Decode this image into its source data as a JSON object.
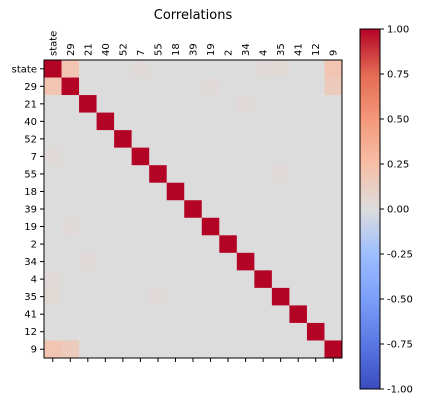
{
  "chart_data": {
    "type": "heatmap",
    "title": "Correlations",
    "labels": [
      "state",
      "29",
      "21",
      "40",
      "52",
      "7",
      "55",
      "18",
      "39",
      "19",
      "2",
      "34",
      "4",
      "35",
      "41",
      "12",
      "9"
    ],
    "vmin": -1.0,
    "vmax": 1.0,
    "colormap": "coolwarm",
    "colorbar_ticks": [
      "-1.00",
      "-0.75",
      "-0.50",
      "-0.25",
      "0.00",
      "0.25",
      "0.50",
      "0.75",
      "1.00"
    ],
    "matrix": [
      [
        1.0,
        0.2,
        0.0,
        0.0,
        0.0,
        0.02,
        0.0,
        0.0,
        0.0,
        0.0,
        0.0,
        0.0,
        0.02,
        0.03,
        0.0,
        0.0,
        0.2
      ],
      [
        0.2,
        1.0,
        0.0,
        0.0,
        0.0,
        0.0,
        0.0,
        0.0,
        0.0,
        0.02,
        0.0,
        0.0,
        0.0,
        0.0,
        0.0,
        0.0,
        0.15
      ],
      [
        0.0,
        0.0,
        1.0,
        0.0,
        0.0,
        0.0,
        0.0,
        0.0,
        0.0,
        0.0,
        0.0,
        0.02,
        0.0,
        0.0,
        0.0,
        0.0,
        0.0
      ],
      [
        0.0,
        0.0,
        0.0,
        1.0,
        0.0,
        0.0,
        0.0,
        0.0,
        0.0,
        0.0,
        0.0,
        0.0,
        0.0,
        0.0,
        0.0,
        0.0,
        0.0
      ],
      [
        0.0,
        0.0,
        0.0,
        0.0,
        1.0,
        0.0,
        0.0,
        0.0,
        0.0,
        0.0,
        0.0,
        0.0,
        0.0,
        0.0,
        0.0,
        0.0,
        0.0
      ],
      [
        0.02,
        0.0,
        0.0,
        0.0,
        0.0,
        1.0,
        0.0,
        0.0,
        0.0,
        0.0,
        0.0,
        0.0,
        0.0,
        0.0,
        0.0,
        0.0,
        0.0
      ],
      [
        0.0,
        0.0,
        0.0,
        0.0,
        0.0,
        0.0,
        1.0,
        0.0,
        0.0,
        0.0,
        0.0,
        0.0,
        0.0,
        0.02,
        0.0,
        0.0,
        0.0
      ],
      [
        0.0,
        0.0,
        0.0,
        0.0,
        0.0,
        0.0,
        0.0,
        1.0,
        0.0,
        0.0,
        0.0,
        0.0,
        0.0,
        0.0,
        0.0,
        0.0,
        0.0
      ],
      [
        0.0,
        0.0,
        0.0,
        0.0,
        0.0,
        0.0,
        0.0,
        0.0,
        1.0,
        0.0,
        0.0,
        0.0,
        0.0,
        0.0,
        0.0,
        0.0,
        0.0
      ],
      [
        0.0,
        0.02,
        0.0,
        0.0,
        0.0,
        0.0,
        0.0,
        0.0,
        0.0,
        1.0,
        0.0,
        0.0,
        0.0,
        0.0,
        0.0,
        0.0,
        0.0
      ],
      [
        0.0,
        0.0,
        0.0,
        0.0,
        0.0,
        0.0,
        0.0,
        0.0,
        0.0,
        0.0,
        1.0,
        0.0,
        0.0,
        0.0,
        0.0,
        0.0,
        0.0
      ],
      [
        0.0,
        0.0,
        0.02,
        0.0,
        0.0,
        0.0,
        0.0,
        0.0,
        0.0,
        0.0,
        0.0,
        1.0,
        0.0,
        0.0,
        0.0,
        0.0,
        0.0
      ],
      [
        0.02,
        0.0,
        0.0,
        0.0,
        0.0,
        0.0,
        0.0,
        0.0,
        0.0,
        0.0,
        0.0,
        0.0,
        1.0,
        0.0,
        0.0,
        0.0,
        0.0
      ],
      [
        0.03,
        0.0,
        0.0,
        0.0,
        0.0,
        0.0,
        0.02,
        0.0,
        0.0,
        0.0,
        0.0,
        0.0,
        0.0,
        1.0,
        0.0,
        0.0,
        0.0
      ],
      [
        0.0,
        0.0,
        0.0,
        0.0,
        0.0,
        0.0,
        0.0,
        0.0,
        0.0,
        0.0,
        0.0,
        0.0,
        0.0,
        0.0,
        1.0,
        0.0,
        0.0
      ],
      [
        0.0,
        0.0,
        0.0,
        0.0,
        0.0,
        0.0,
        0.0,
        0.0,
        0.0,
        0.0,
        0.0,
        0.0,
        0.0,
        0.0,
        0.0,
        1.0,
        0.0
      ],
      [
        0.2,
        0.15,
        0.0,
        0.0,
        0.0,
        0.0,
        0.0,
        0.0,
        0.0,
        0.0,
        0.0,
        0.0,
        0.0,
        0.0,
        0.0,
        0.0,
        1.0
      ]
    ]
  }
}
